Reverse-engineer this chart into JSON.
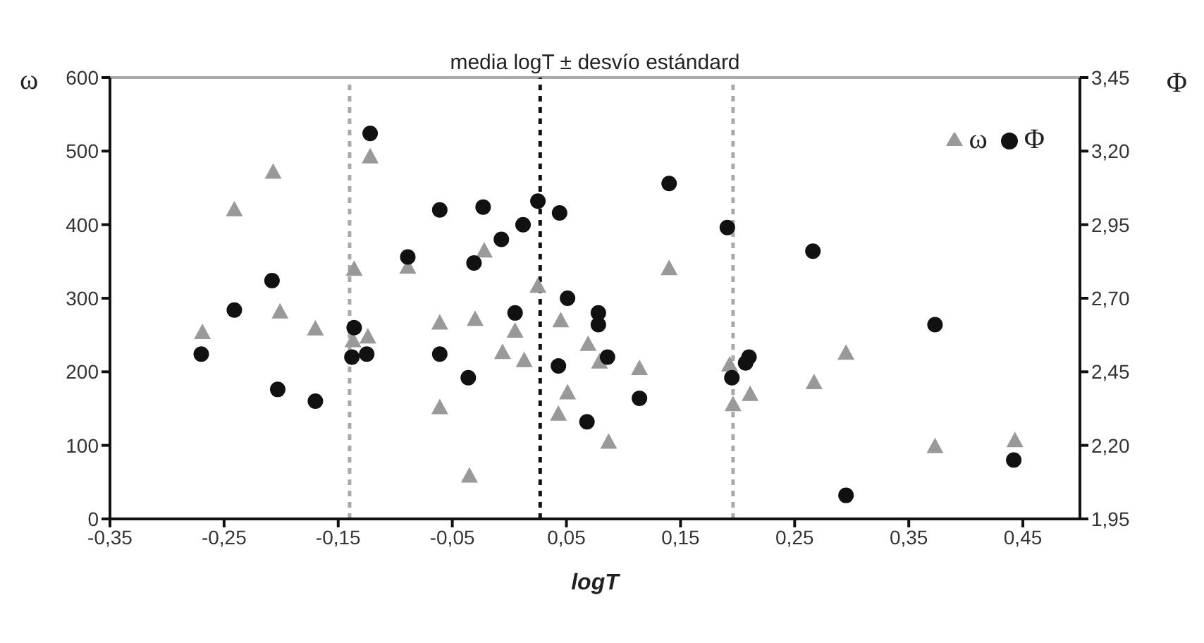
{
  "chart_data": {
    "type": "scatter",
    "title": "media logT ± desvío estándard",
    "xlabel": "logT",
    "ylabel": "ω",
    "y2label": "Φ",
    "xlim": [
      -0.35,
      0.5
    ],
    "xticks": [
      {
        "value": -0.35,
        "label": "-0,35"
      },
      {
        "value": -0.25,
        "label": "-0,25"
      },
      {
        "value": -0.15,
        "label": "-0,15"
      },
      {
        "value": -0.05,
        "label": "-0,05"
      },
      {
        "value": 0.05,
        "label": "0,05"
      },
      {
        "value": 0.15,
        "label": "0,15"
      },
      {
        "value": 0.25,
        "label": "0,25"
      },
      {
        "value": 0.35,
        "label": "0,35"
      },
      {
        "value": 0.45,
        "label": "0,45"
      }
    ],
    "ylim": [
      0,
      600
    ],
    "yticks": [
      0,
      100,
      200,
      300,
      400,
      500,
      600
    ],
    "y2lim": [
      1.95,
      3.45
    ],
    "y2ticks": [
      {
        "value": 1.95,
        "label": "1,95"
      },
      {
        "value": 2.2,
        "label": "2,20"
      },
      {
        "value": 2.45,
        "label": "2,45"
      },
      {
        "value": 2.7,
        "label": "2,70"
      },
      {
        "value": 2.95,
        "label": "2,95"
      },
      {
        "value": 3.2,
        "label": "3,20"
      },
      {
        "value": 3.45,
        "label": "3,45"
      }
    ],
    "grid": false,
    "legend": "top right",
    "ref_lines": [
      {
        "axis": "x",
        "value": -0.14,
        "color": "#aaaaaa",
        "line_style": "dashed"
      },
      {
        "axis": "x",
        "value": 0.027,
        "color": "#111111",
        "line_style": "dashed"
      },
      {
        "axis": "x",
        "value": 0.196,
        "color": "#aaaaaa",
        "line_style": "dashed"
      }
    ],
    "series": [
      {
        "name": "ω",
        "color": "#999999",
        "marker": "triangle",
        "axis": "y",
        "x": [
          -0.269,
          -0.241,
          -0.207,
          -0.201,
          -0.17,
          -0.136,
          -0.137,
          -0.124,
          -0.122,
          -0.089,
          -0.022,
          0.025,
          -0.061,
          -0.03,
          0.005,
          0.045,
          -0.006,
          0.013,
          0.069,
          0.079,
          0.114,
          -0.061,
          0.051,
          0.043,
          0.087,
          -0.035,
          0.14,
          0.193,
          0.196,
          0.211,
          0.267,
          0.295,
          0.373,
          0.443
        ],
        "values": [
          254,
          421,
          472,
          282,
          259,
          340,
          243,
          248,
          493,
          343,
          365,
          317,
          267,
          272,
          256,
          270,
          227,
          216,
          238,
          214,
          205,
          152,
          172,
          143,
          105,
          59,
          341,
          210,
          156,
          170,
          186,
          226,
          99,
          107
        ]
      },
      {
        "name": "Φ",
        "color": "#111111",
        "marker": "circle",
        "axis": "y2",
        "x": [
          -0.27,
          -0.241,
          -0.208,
          -0.203,
          -0.17,
          -0.136,
          -0.138,
          -0.125,
          -0.122,
          -0.089,
          -0.061,
          -0.023,
          -0.007,
          0.012,
          0.025,
          0.044,
          -0.031,
          0.14,
          0.191,
          0.051,
          0.005,
          0.078,
          0.078,
          -0.061,
          0.086,
          0.043,
          -0.036,
          0.114,
          0.068,
          0.195,
          0.21,
          0.207,
          0.266,
          0.373,
          0.295,
          0.442
        ],
        "values": [
          2.51,
          2.66,
          2.76,
          2.39,
          2.35,
          2.6,
          2.5,
          2.51,
          3.26,
          2.84,
          3.0,
          3.01,
          2.9,
          2.95,
          3.03,
          2.99,
          2.82,
          3.09,
          2.94,
          2.7,
          2.65,
          2.65,
          2.61,
          2.51,
          2.5,
          2.47,
          2.43,
          2.36,
          2.28,
          2.43,
          2.5,
          2.48,
          2.86,
          2.61,
          2.03,
          2.15
        ]
      }
    ]
  }
}
